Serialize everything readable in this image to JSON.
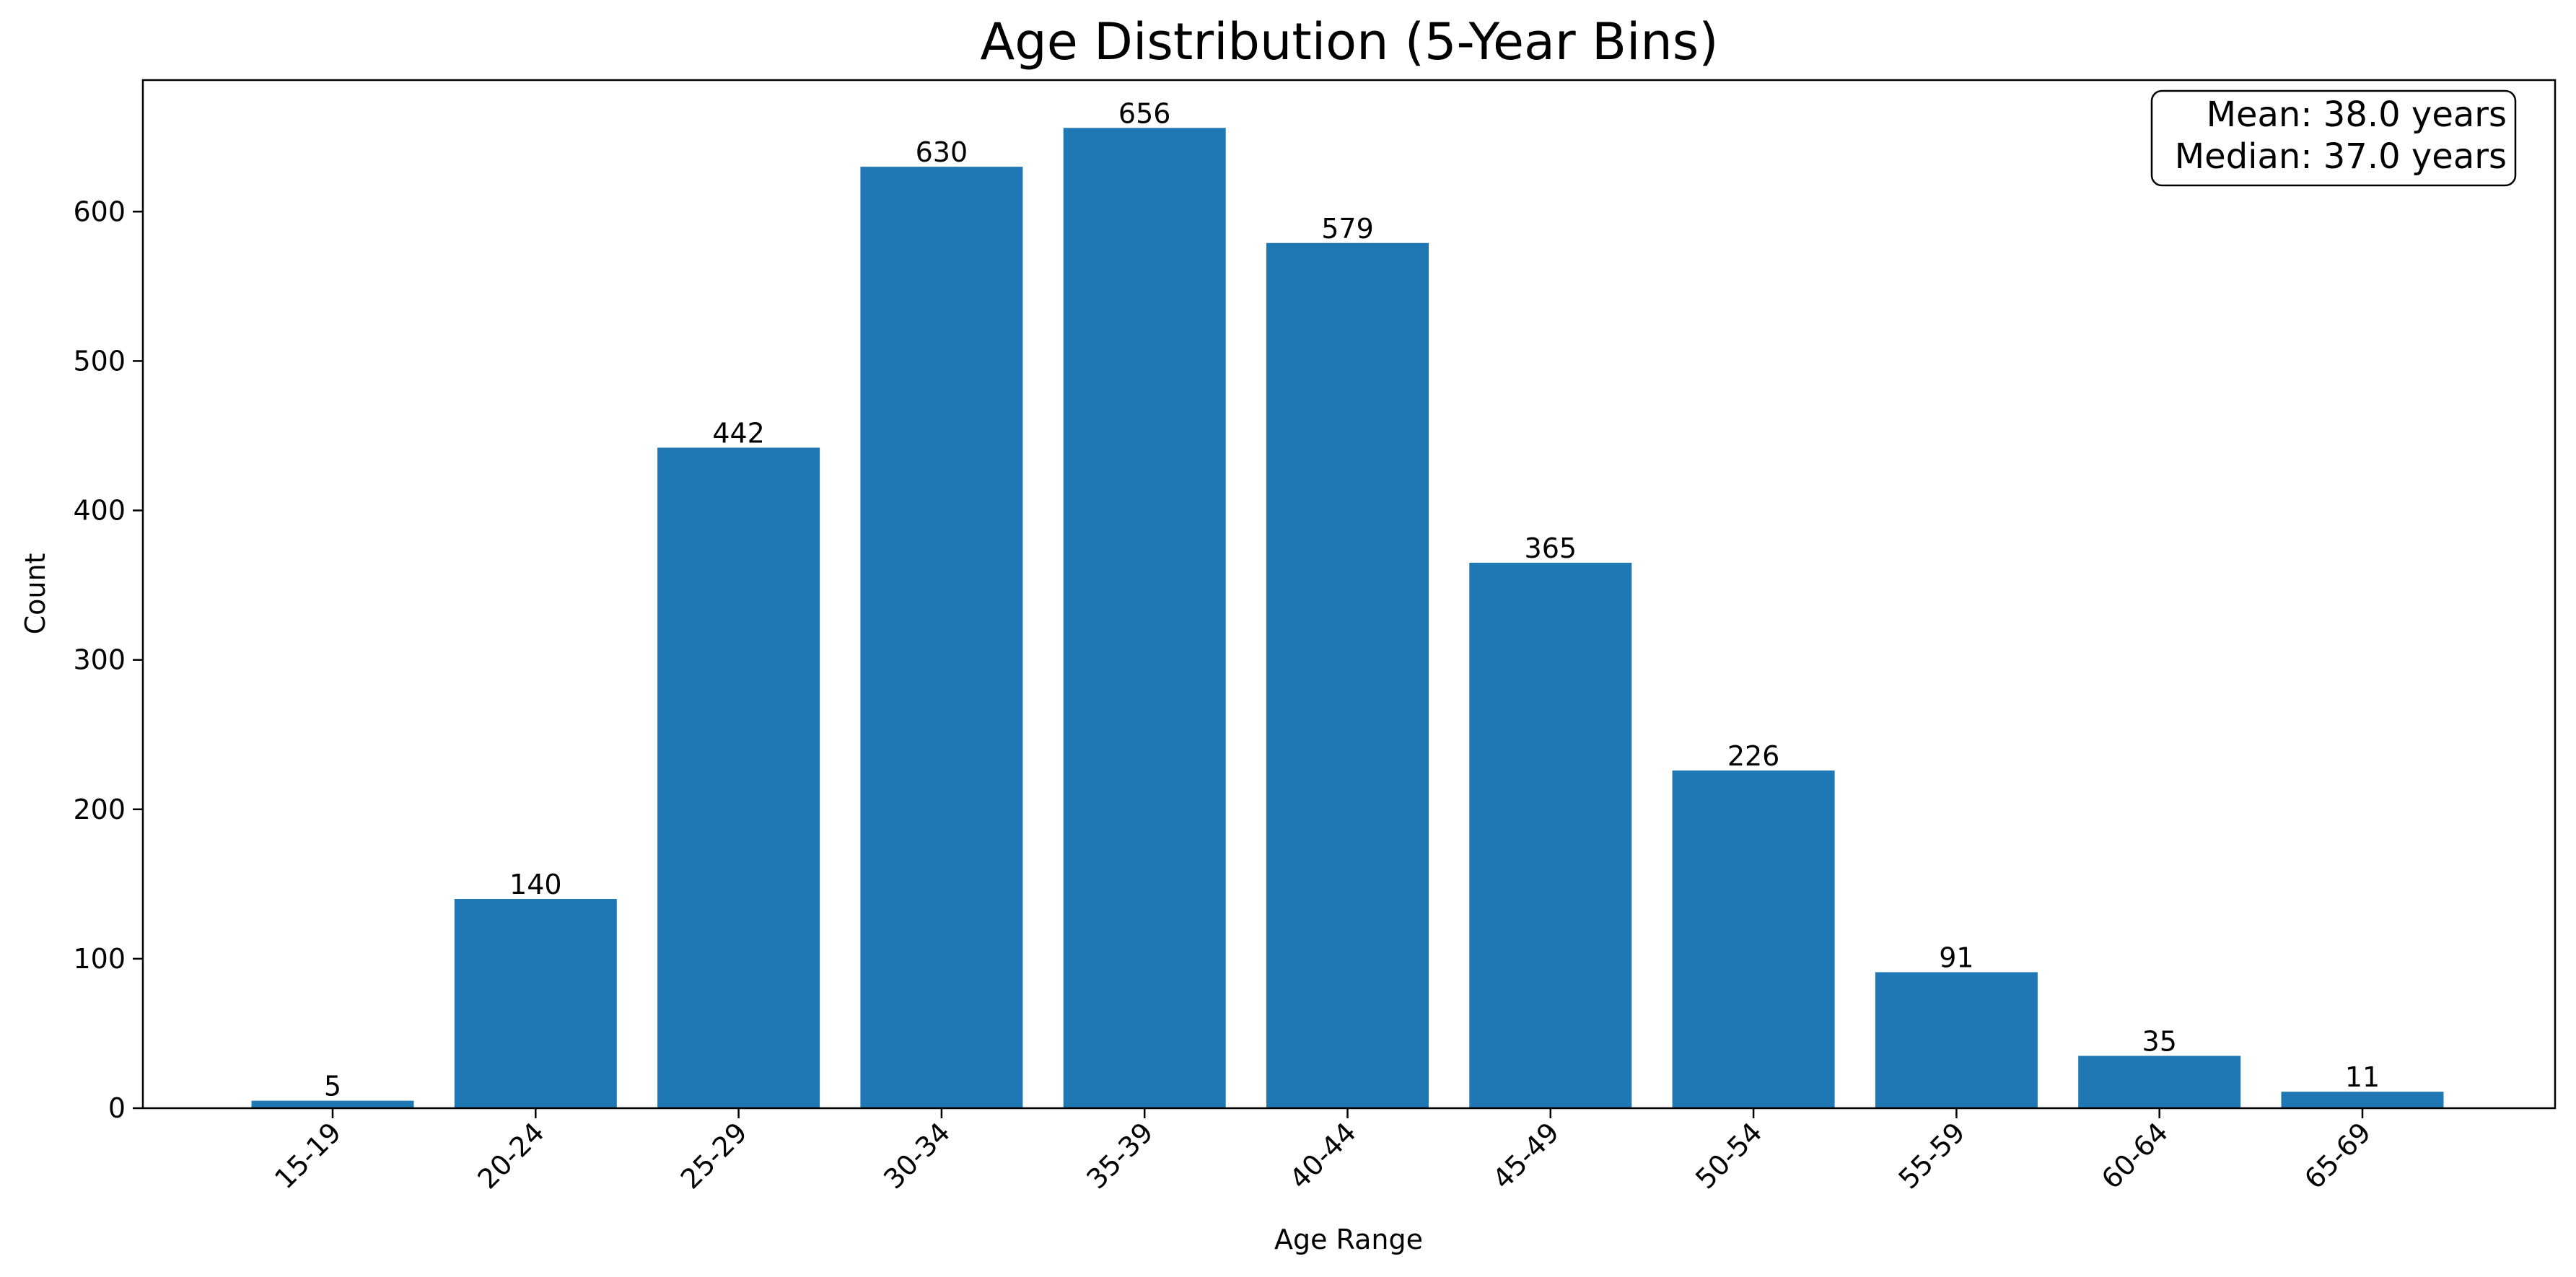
{
  "chart_data": {
    "type": "bar",
    "title": "Age Distribution (5-Year Bins)",
    "xlabel": "Age Range",
    "ylabel": "Count",
    "categories": [
      "15-19",
      "20-24",
      "25-29",
      "30-34",
      "35-39",
      "40-44",
      "45-49",
      "50-54",
      "55-59",
      "60-64",
      "65-69"
    ],
    "values": [
      5,
      140,
      442,
      630,
      656,
      579,
      365,
      226,
      91,
      35,
      11
    ],
    "ylim": [
      0,
      688
    ],
    "yticks": [
      0,
      100,
      200,
      300,
      400,
      500,
      600
    ],
    "bar_color": "#1f77b4",
    "grid": false,
    "stats_box": {
      "position": "top-right",
      "mean": "Mean: 38.0 years",
      "median": "Median: 37.0 years"
    }
  }
}
